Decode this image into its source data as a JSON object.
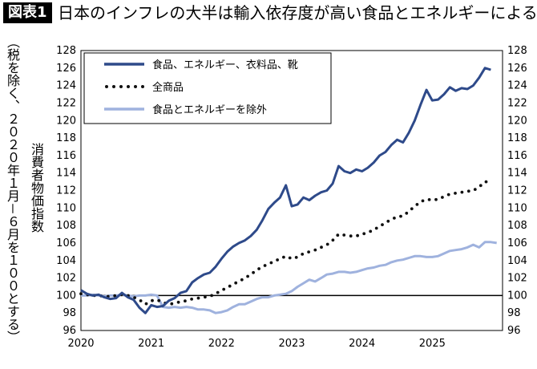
{
  "header": {
    "badge": "図表1",
    "title": "日本のインフレの大半は輸入依存度が高い食品とエネルギーによる"
  },
  "chart_data": {
    "type": "line",
    "title": "日本のインフレの大半は輸入依存度が高い食品とエネルギーによる",
    "ylabel_outer": "（税を除く、２０２０年１月－６月を１００とする）",
    "ylabel_inner": "消費者物価指数",
    "ylim": [
      96,
      128
    ],
    "yticks": [
      "96",
      "98",
      "100",
      "102",
      "104",
      "106",
      "108",
      "110",
      "112",
      "114",
      "116",
      "118",
      "120",
      "122",
      "124",
      "126",
      "128"
    ],
    "xticks": [
      "2020",
      "2021",
      "2022",
      "2023",
      "2024",
      "2025"
    ],
    "xlim": [
      2020.0,
      2026.0
    ],
    "baseline": 100,
    "legend_position": "top-left",
    "series": [
      {
        "name": "食品、エネルギー、衣料品、靴",
        "color": "#2e4a8a",
        "style": "solid",
        "points": [
          [
            2020.0,
            100.6
          ],
          [
            2020.083,
            100.2
          ],
          [
            2020.167,
            100.0
          ],
          [
            2020.25,
            100.1
          ],
          [
            2020.333,
            99.8
          ],
          [
            2020.417,
            99.6
          ],
          [
            2020.5,
            99.7
          ],
          [
            2020.583,
            100.3
          ],
          [
            2020.667,
            99.8
          ],
          [
            2020.75,
            99.5
          ],
          [
            2020.833,
            98.6
          ],
          [
            2020.917,
            98.0
          ],
          [
            2021.0,
            98.9
          ],
          [
            2021.083,
            98.7
          ],
          [
            2021.167,
            98.8
          ],
          [
            2021.25,
            99.4
          ],
          [
            2021.333,
            99.7
          ],
          [
            2021.417,
            100.3
          ],
          [
            2021.5,
            100.5
          ],
          [
            2021.583,
            101.5
          ],
          [
            2021.667,
            102.0
          ],
          [
            2021.75,
            102.4
          ],
          [
            2021.833,
            102.6
          ],
          [
            2021.917,
            103.3
          ],
          [
            2022.0,
            104.2
          ],
          [
            2022.083,
            105.0
          ],
          [
            2022.167,
            105.6
          ],
          [
            2022.25,
            106.0
          ],
          [
            2022.333,
            106.3
          ],
          [
            2022.417,
            106.8
          ],
          [
            2022.5,
            107.5
          ],
          [
            2022.583,
            108.6
          ],
          [
            2022.667,
            109.9
          ],
          [
            2022.75,
            110.6
          ],
          [
            2022.833,
            111.2
          ],
          [
            2022.917,
            112.6
          ],
          [
            2023.0,
            110.2
          ],
          [
            2023.083,
            110.4
          ],
          [
            2023.167,
            111.2
          ],
          [
            2023.25,
            110.9
          ],
          [
            2023.333,
            111.4
          ],
          [
            2023.417,
            111.8
          ],
          [
            2023.5,
            112.0
          ],
          [
            2023.583,
            112.8
          ],
          [
            2023.667,
            114.8
          ],
          [
            2023.75,
            114.2
          ],
          [
            2023.833,
            114.0
          ],
          [
            2023.917,
            114.4
          ],
          [
            2024.0,
            114.2
          ],
          [
            2024.083,
            114.6
          ],
          [
            2024.167,
            115.2
          ],
          [
            2024.25,
            116.0
          ],
          [
            2024.333,
            116.4
          ],
          [
            2024.417,
            117.2
          ],
          [
            2024.5,
            117.8
          ],
          [
            2024.583,
            117.5
          ],
          [
            2024.667,
            118.6
          ],
          [
            2024.75,
            120.0
          ],
          [
            2024.833,
            121.8
          ],
          [
            2024.917,
            123.5
          ],
          [
            2025.0,
            122.3
          ],
          [
            2025.083,
            122.4
          ],
          [
            2025.167,
            123.0
          ],
          [
            2025.25,
            123.8
          ],
          [
            2025.333,
            123.4
          ],
          [
            2025.417,
            123.7
          ],
          [
            2025.5,
            123.6
          ],
          [
            2025.583,
            124.0
          ],
          [
            2025.667,
            124.9
          ],
          [
            2025.75,
            126.0
          ],
          [
            2025.833,
            125.8
          ]
        ]
      },
      {
        "name": "全商品",
        "color": "#111111",
        "style": "dotted",
        "points": [
          [
            2020.0,
            100.2
          ],
          [
            2020.083,
            100.1
          ],
          [
            2020.167,
            100.0
          ],
          [
            2020.25,
            100.0
          ],
          [
            2020.333,
            99.9
          ],
          [
            2020.417,
            99.9
          ],
          [
            2020.5,
            100.0
          ],
          [
            2020.583,
            100.1
          ],
          [
            2020.667,
            100.0
          ],
          [
            2020.75,
            99.8
          ],
          [
            2020.833,
            99.5
          ],
          [
            2020.917,
            99.0
          ],
          [
            2021.0,
            99.4
          ],
          [
            2021.083,
            99.5
          ],
          [
            2021.167,
            99.2
          ],
          [
            2021.25,
            99.0
          ],
          [
            2021.333,
            99.1
          ],
          [
            2021.417,
            99.3
          ],
          [
            2021.5,
            99.4
          ],
          [
            2021.583,
            99.6
          ],
          [
            2021.667,
            99.7
          ],
          [
            2021.75,
            99.8
          ],
          [
            2021.833,
            99.9
          ],
          [
            2021.917,
            100.2
          ],
          [
            2022.0,
            100.6
          ],
          [
            2022.083,
            100.9
          ],
          [
            2022.167,
            101.3
          ],
          [
            2022.25,
            101.6
          ],
          [
            2022.333,
            102.0
          ],
          [
            2022.417,
            102.4
          ],
          [
            2022.5,
            102.9
          ],
          [
            2022.583,
            103.3
          ],
          [
            2022.667,
            103.6
          ],
          [
            2022.75,
            103.9
          ],
          [
            2022.833,
            104.2
          ],
          [
            2022.917,
            104.5
          ],
          [
            2023.0,
            104.2
          ],
          [
            2023.083,
            104.4
          ],
          [
            2023.167,
            104.8
          ],
          [
            2023.25,
            105.0
          ],
          [
            2023.333,
            105.2
          ],
          [
            2023.417,
            105.5
          ],
          [
            2023.5,
            105.8
          ],
          [
            2023.583,
            106.3
          ],
          [
            2023.667,
            107.0
          ],
          [
            2023.75,
            106.9
          ],
          [
            2023.833,
            106.8
          ],
          [
            2023.917,
            106.8
          ],
          [
            2024.0,
            107.0
          ],
          [
            2024.083,
            107.2
          ],
          [
            2024.167,
            107.5
          ],
          [
            2024.25,
            107.9
          ],
          [
            2024.333,
            108.3
          ],
          [
            2024.417,
            108.7
          ],
          [
            2024.5,
            109.0
          ],
          [
            2024.583,
            109.1
          ],
          [
            2024.667,
            109.6
          ],
          [
            2024.75,
            110.2
          ],
          [
            2024.833,
            110.7
          ],
          [
            2024.917,
            111.0
          ],
          [
            2025.0,
            110.9
          ],
          [
            2025.083,
            111.0
          ],
          [
            2025.167,
            111.3
          ],
          [
            2025.25,
            111.6
          ],
          [
            2025.333,
            111.7
          ],
          [
            2025.417,
            111.8
          ],
          [
            2025.5,
            111.9
          ],
          [
            2025.583,
            112.0
          ],
          [
            2025.667,
            112.4
          ],
          [
            2025.75,
            113.0
          ],
          [
            2025.833,
            113.0
          ]
        ]
      },
      {
        "name": "食品とエネルギーを除外",
        "color": "#9fb2de",
        "style": "solid",
        "points": [
          [
            2020.0,
            100.0
          ],
          [
            2020.083,
            100.0
          ],
          [
            2020.167,
            100.1
          ],
          [
            2020.25,
            100.0
          ],
          [
            2020.333,
            99.9
          ],
          [
            2020.417,
            100.0
          ],
          [
            2020.5,
            100.0
          ],
          [
            2020.583,
            100.1
          ],
          [
            2020.667,
            100.0
          ],
          [
            2020.75,
            99.9
          ],
          [
            2020.833,
            100.0
          ],
          [
            2020.917,
            100.0
          ],
          [
            2021.0,
            100.1
          ],
          [
            2021.083,
            100.0
          ],
          [
            2021.167,
            98.7
          ],
          [
            2021.25,
            98.6
          ],
          [
            2021.333,
            98.7
          ],
          [
            2021.417,
            98.6
          ],
          [
            2021.5,
            98.7
          ],
          [
            2021.583,
            98.6
          ],
          [
            2021.667,
            98.4
          ],
          [
            2021.75,
            98.4
          ],
          [
            2021.833,
            98.3
          ],
          [
            2021.917,
            98.0
          ],
          [
            2022.0,
            98.1
          ],
          [
            2022.083,
            98.3
          ],
          [
            2022.167,
            98.7
          ],
          [
            2022.25,
            99.0
          ],
          [
            2022.333,
            99.0
          ],
          [
            2022.417,
            99.3
          ],
          [
            2022.5,
            99.6
          ],
          [
            2022.583,
            99.8
          ],
          [
            2022.667,
            99.8
          ],
          [
            2022.75,
            100.0
          ],
          [
            2022.833,
            100.1
          ],
          [
            2022.917,
            100.2
          ],
          [
            2023.0,
            100.5
          ],
          [
            2023.083,
            101.0
          ],
          [
            2023.167,
            101.4
          ],
          [
            2023.25,
            101.8
          ],
          [
            2023.333,
            101.6
          ],
          [
            2023.417,
            102.0
          ],
          [
            2023.5,
            102.4
          ],
          [
            2023.583,
            102.5
          ],
          [
            2023.667,
            102.7
          ],
          [
            2023.75,
            102.7
          ],
          [
            2023.833,
            102.6
          ],
          [
            2023.917,
            102.7
          ],
          [
            2024.0,
            102.9
          ],
          [
            2024.083,
            103.1
          ],
          [
            2024.167,
            103.2
          ],
          [
            2024.25,
            103.4
          ],
          [
            2024.333,
            103.5
          ],
          [
            2024.417,
            103.8
          ],
          [
            2024.5,
            104.0
          ],
          [
            2024.583,
            104.1
          ],
          [
            2024.667,
            104.3
          ],
          [
            2024.75,
            104.5
          ],
          [
            2024.833,
            104.5
          ],
          [
            2024.917,
            104.4
          ],
          [
            2025.0,
            104.4
          ],
          [
            2025.083,
            104.5
          ],
          [
            2025.167,
            104.8
          ],
          [
            2025.25,
            105.1
          ],
          [
            2025.333,
            105.2
          ],
          [
            2025.417,
            105.3
          ],
          [
            2025.5,
            105.5
          ],
          [
            2025.583,
            105.8
          ],
          [
            2025.667,
            105.5
          ],
          [
            2025.75,
            106.1
          ],
          [
            2025.833,
            106.1
          ],
          [
            2025.917,
            106.0
          ]
        ]
      }
    ]
  }
}
